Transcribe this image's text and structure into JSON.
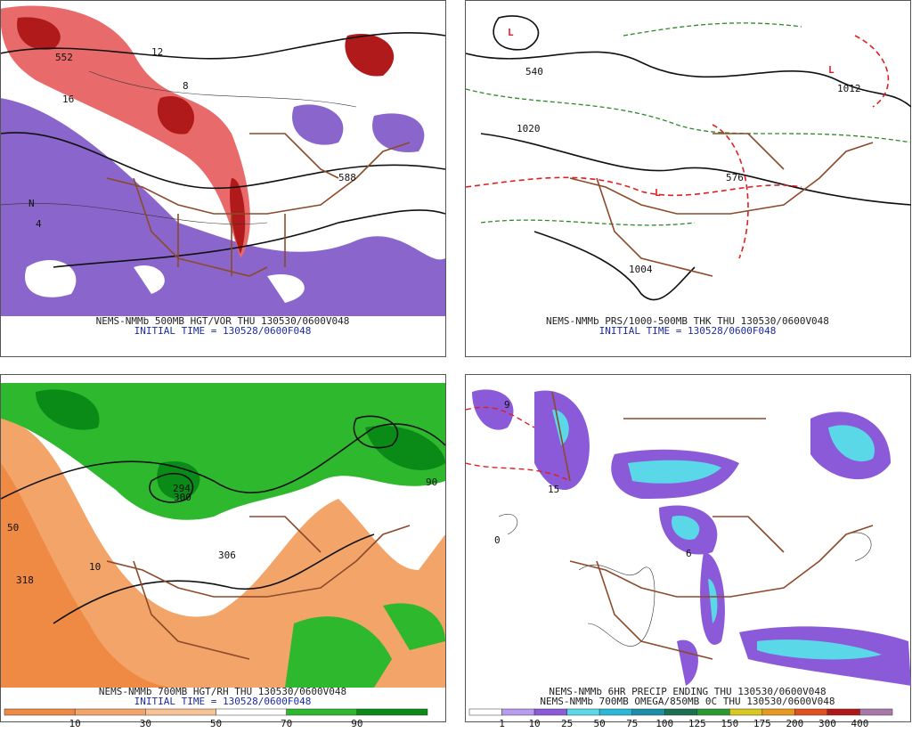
{
  "panels": [
    {
      "caption": "NEMS-NMMb 500MB HGT/VOR THU 130530/0600V048",
      "subcaption": "INITIAL TIME = 130528/0600F048",
      "labels": [
        "552",
        "588",
        "12",
        "8",
        "16",
        "4",
        "N"
      ]
    },
    {
      "caption": "NEMS-NMMb PRS/1000-500MB THK THU 130530/0600V048",
      "subcaption": "INITIAL TIME = 130528/0600F048",
      "labels": [
        "L",
        "1004",
        "1012",
        "1020",
        "540",
        "576"
      ]
    },
    {
      "caption": "NEMS-NMMb 700MB HGT/RH THU 130530/0600V048",
      "subcaption": "INITIAL TIME = 130528/0600F048",
      "labels": [
        "300",
        "306",
        "318",
        "294",
        "50",
        "10",
        "90"
      ],
      "colorbar": {
        "labels": [
          "10",
          "30",
          "50",
          "70",
          "90"
        ],
        "colors": [
          "#ee8a44",
          "#f3a469",
          "#f7c394",
          "#ffffff",
          "#2eb82e",
          "#0a8a16"
        ]
      }
    },
    {
      "caption": "NEMS-NMMb 6HR PRECIP ENDING THU 130530/0600V048",
      "subcaption": "NEMS-NMMb 700MB OMEGA/850MB 0C THU 130530/0600V048",
      "labels": [
        "0",
        "15",
        "6",
        "9"
      ],
      "colorbar": {
        "labels": [
          "1",
          "10",
          "25",
          "50",
          "75",
          "100",
          "125",
          "150",
          "175",
          "200",
          "300",
          "400"
        ],
        "colors": [
          "#ffffff",
          "#b99cf0",
          "#8a5ad8",
          "#5ad8e8",
          "#2ab8d8",
          "#1a90a8",
          "#1a7050",
          "#2a9a30",
          "#d8c820",
          "#e89a20",
          "#e05020",
          "#b01818",
          "#a878a8"
        ]
      }
    }
  ]
}
